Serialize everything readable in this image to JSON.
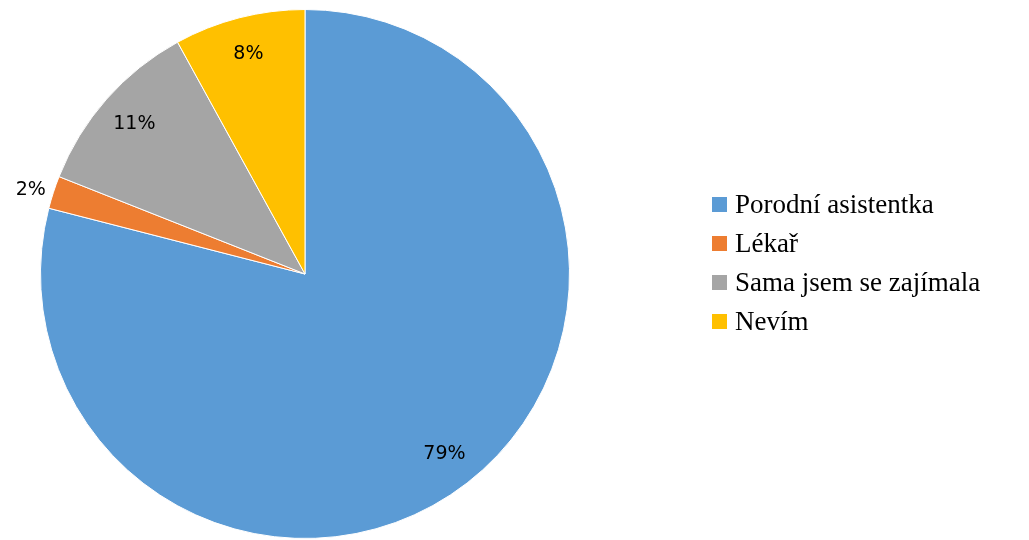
{
  "chart_data": {
    "type": "pie",
    "categories": [
      "Porodní asistentka",
      "Lékař",
      "Sama jsem se zajímala",
      "Nevím"
    ],
    "values": [
      79,
      2,
      11,
      8
    ],
    "colors": [
      "#5b9bd5",
      "#ed7d31",
      "#a5a5a5",
      "#ffc000"
    ],
    "value_labels": [
      "79%",
      "2%",
      "11%",
      "8%"
    ],
    "legend": "right"
  }
}
